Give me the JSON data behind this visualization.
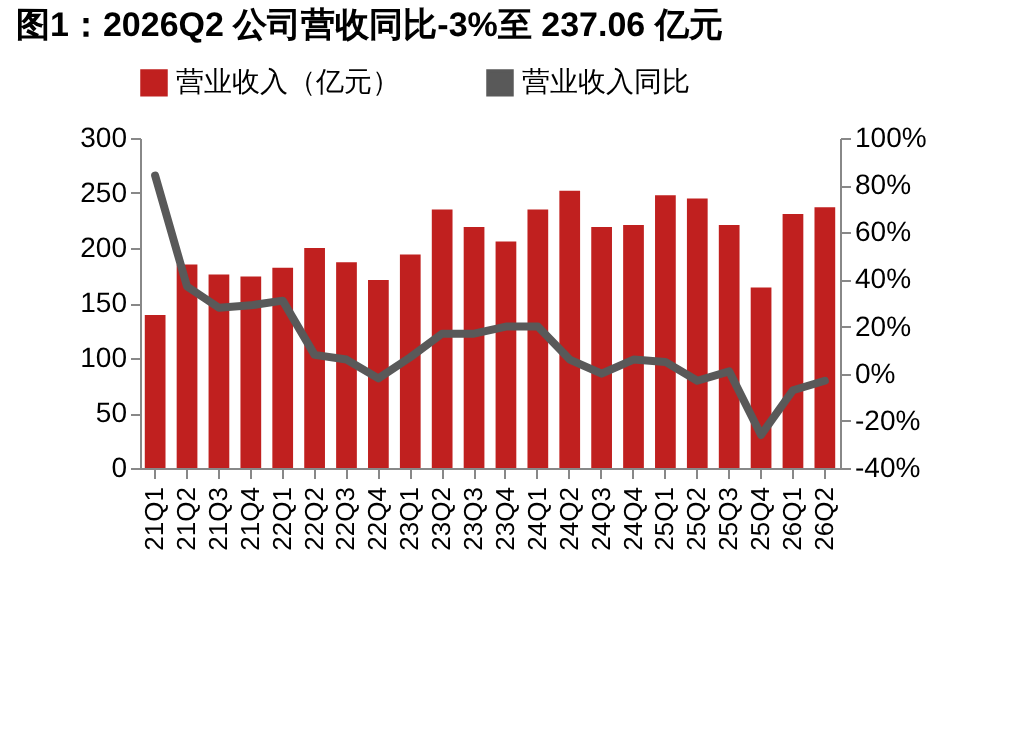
{
  "chart_data": {
    "type": "bar",
    "title": "图1：2026Q2 公司营收同比-3%至 237.06 亿元",
    "categories": [
      "21Q1",
      "21Q2",
      "21Q3",
      "21Q4",
      "22Q1",
      "22Q2",
      "22Q3",
      "22Q4",
      "23Q1",
      "23Q2",
      "23Q3",
      "23Q4",
      "24Q1",
      "24Q2",
      "24Q3",
      "24Q4",
      "25Q1",
      "25Q2",
      "25Q3",
      "25Q4",
      "26Q1",
      "26Q2"
    ],
    "series": [
      {
        "name": "营业收入（亿元）",
        "color": "#c0201f",
        "values": [
          139,
          185,
          176,
          174,
          182,
          200,
          187,
          171,
          194,
          235,
          219,
          206,
          235,
          252,
          219,
          221,
          248,
          245,
          221,
          164,
          231,
          237.06
        ]
      },
      {
        "name": "营业收入同比",
        "type": "line",
        "axis": "y2",
        "color": "#595959",
        "values": [
          84,
          37,
          28,
          29,
          31,
          8,
          6,
          -2,
          7,
          17,
          17,
          20,
          20,
          6,
          0,
          6,
          5,
          -3,
          1,
          -26,
          -7,
          -3
        ]
      }
    ],
    "ylim": [
      0,
      300
    ],
    "yticks": [
      0,
      50,
      100,
      150,
      200,
      250,
      300
    ],
    "y2lim": [
      -40,
      100
    ],
    "y2ticks": [
      {
        "value": -40,
        "label": "-40%"
      },
      {
        "value": -20,
        "label": "-20%"
      },
      {
        "value": 0,
        "label": "0%"
      },
      {
        "value": 20,
        "label": "20%"
      },
      {
        "value": 40,
        "label": "40%"
      },
      {
        "value": 60,
        "label": "60%"
      },
      {
        "value": 80,
        "label": "80%"
      },
      {
        "value": 100,
        "label": "100%"
      }
    ],
    "legend": "top",
    "grid": false
  }
}
